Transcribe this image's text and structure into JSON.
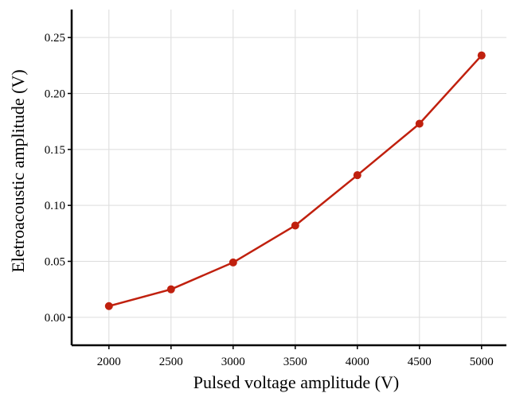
{
  "chart_data": {
    "type": "line",
    "title": "",
    "xlabel": "Pulsed voltage amplitude (V)",
    "ylabel": "Eletroacoustic amplitude  (V)",
    "x": [
      2000,
      2500,
      3000,
      3500,
      4000,
      4500,
      5000
    ],
    "series": [
      {
        "values": [
          0.01,
          0.025,
          0.049,
          0.082,
          0.127,
          0.173,
          0.234
        ]
      }
    ],
    "xlim": [
      1700,
      5200
    ],
    "ylim": [
      -0.025,
      0.275
    ],
    "xticks": [
      "2000",
      "2500",
      "3000",
      "3500",
      "4000",
      "4500",
      "5000"
    ],
    "yticks": [
      "0.00",
      "0.05",
      "0.10",
      "0.15",
      "0.20",
      "0.25"
    ],
    "grid": true,
    "legend": "none",
    "colors": {
      "line": "#c0200e",
      "marker": "#c0200e",
      "grid": "#dcdcdc",
      "axis": "#000000"
    }
  }
}
